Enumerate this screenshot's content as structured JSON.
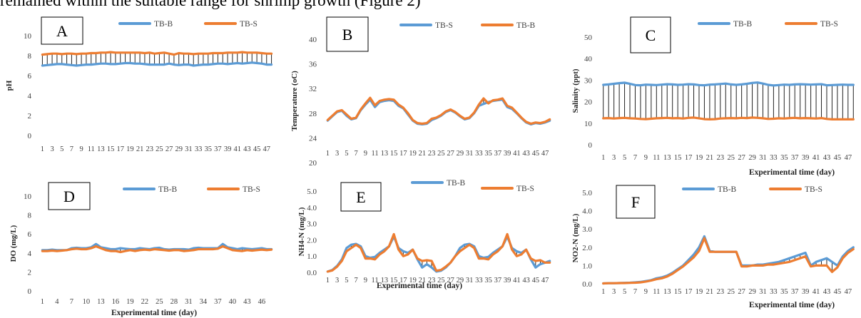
{
  "heading": "remained within the suitable range for shrimp growth (Figure 2)",
  "chart_data": [
    {
      "panel": "A",
      "type": "line",
      "xlabel": "",
      "ylabel": "pH",
      "ylim": [
        0,
        10
      ],
      "yticks": [
        0,
        2,
        4,
        6,
        8,
        10
      ],
      "x_tick_labels": [
        "1",
        "3",
        "5",
        "7",
        "9",
        "11",
        "13",
        "15",
        "17",
        "19",
        "21",
        "23",
        "25",
        "27",
        "29",
        "31",
        "33",
        "35",
        "37",
        "39",
        "41",
        "43",
        "45",
        "47"
      ],
      "legend": "top",
      "series": [
        {
          "name": "TB-B",
          "color": "#5b9bd5",
          "values": [
            7.0,
            7.05,
            7.1,
            7.15,
            7.15,
            7.1,
            7.05,
            7.0,
            7.05,
            7.1,
            7.1,
            7.15,
            7.2,
            7.2,
            7.15,
            7.15,
            7.2,
            7.25,
            7.25,
            7.2,
            7.2,
            7.15,
            7.1,
            7.1,
            7.1,
            7.1,
            7.2,
            7.1,
            7.05,
            7.1,
            7.1,
            7.0,
            7.05,
            7.1,
            7.1,
            7.15,
            7.2,
            7.2,
            7.15,
            7.2,
            7.25,
            7.2,
            7.25,
            7.3,
            7.25,
            7.2,
            7.1,
            7.1
          ]
        },
        {
          "name": "TB-S",
          "color": "#ed7d31",
          "values": [
            8.1,
            8.15,
            8.2,
            8.2,
            8.15,
            8.2,
            8.2,
            8.15,
            8.2,
            8.2,
            8.25,
            8.25,
            8.3,
            8.3,
            8.35,
            8.3,
            8.3,
            8.3,
            8.3,
            8.3,
            8.3,
            8.25,
            8.3,
            8.2,
            8.25,
            8.3,
            8.2,
            8.1,
            8.25,
            8.2,
            8.2,
            8.15,
            8.2,
            8.2,
            8.2,
            8.25,
            8.25,
            8.25,
            8.3,
            8.3,
            8.3,
            8.35,
            8.3,
            8.3,
            8.3,
            8.25,
            8.2,
            8.2
          ]
        }
      ]
    },
    {
      "panel": "B",
      "type": "line",
      "xlabel": "",
      "ylabel": "Temperature (oC)",
      "ylim": [
        20,
        40
      ],
      "yticks": [
        20,
        24,
        28,
        32,
        36,
        40
      ],
      "x_tick_labels": [
        "1",
        "3",
        "5",
        "7",
        "9",
        "11",
        "13",
        "15",
        "17",
        "19",
        "21",
        "23",
        "25",
        "27",
        "29",
        "31",
        "33",
        "35",
        "37",
        "39",
        "41",
        "43",
        "45",
        "47"
      ],
      "legend": "top",
      "series": [
        {
          "name": "TB-S",
          "color": "#5b9bd5",
          "values": [
            26.8,
            27.5,
            28.2,
            28.4,
            27.6,
            27.0,
            27.2,
            28.5,
            29.4,
            30.2,
            29.0,
            29.8,
            30.0,
            30.1,
            30.0,
            29.2,
            28.8,
            27.8,
            26.8,
            26.3,
            26.2,
            26.3,
            26.9,
            27.2,
            27.6,
            28.2,
            28.5,
            28.1,
            27.5,
            27.0,
            27.2,
            28.0,
            29.2,
            29.5,
            29.8,
            30.0,
            30.1,
            30.2,
            29.0,
            28.7,
            28.0,
            27.2,
            26.5,
            26.2,
            26.4,
            26.3,
            26.5,
            26.8
          ]
        },
        {
          "name": "TB-B",
          "color": "#ed7d31",
          "values": [
            26.9,
            27.6,
            28.3,
            28.5,
            27.8,
            27.1,
            27.3,
            28.6,
            29.6,
            30.5,
            29.3,
            30.0,
            30.2,
            30.3,
            30.2,
            29.4,
            28.9,
            28.0,
            26.9,
            26.4,
            26.3,
            26.4,
            27.1,
            27.3,
            27.7,
            28.3,
            28.6,
            28.2,
            27.6,
            27.1,
            27.3,
            28.1,
            29.4,
            30.4,
            29.6,
            30.1,
            30.2,
            30.4,
            29.2,
            28.9,
            28.1,
            27.3,
            26.6,
            26.3,
            26.5,
            26.4,
            26.6,
            27.0
          ]
        }
      ]
    },
    {
      "panel": "C",
      "type": "line",
      "xlabel": "Experimental time (day)",
      "ylabel": "Salinity (ppt)",
      "ylim": [
        0,
        50
      ],
      "yticks": [
        0,
        10,
        20,
        30,
        40,
        50
      ],
      "x_tick_labels": [
        "1",
        "3",
        "5",
        "7",
        "9",
        "11",
        "13",
        "15",
        "17",
        "19",
        "21",
        "23",
        "25",
        "27",
        "29",
        "31",
        "33",
        "35",
        "37",
        "39",
        "41",
        "43",
        "45",
        "47"
      ],
      "legend": "top",
      "series": [
        {
          "name": "TB-B",
          "color": "#5b9bd5",
          "values": [
            27.8,
            28.0,
            28.3,
            28.6,
            28.8,
            28.3,
            27.7,
            27.6,
            27.9,
            27.8,
            27.7,
            27.9,
            28.1,
            28.0,
            27.8,
            27.9,
            28.1,
            28.0,
            27.7,
            27.6,
            27.9,
            28.0,
            28.2,
            28.4,
            28.0,
            27.8,
            28.0,
            28.3,
            28.7,
            28.9,
            28.4,
            27.8,
            27.5,
            27.7,
            27.9,
            27.8,
            28.0,
            28.1,
            28.0,
            27.9,
            28.0,
            28.1,
            27.6,
            27.7,
            27.8,
            27.9,
            27.8,
            27.8
          ]
        },
        {
          "name": "TB-S",
          "color": "#ed7d31",
          "values": [
            12.3,
            12.4,
            12.2,
            12.4,
            12.5,
            12.3,
            12.2,
            12.0,
            11.9,
            12.1,
            12.3,
            12.4,
            12.5,
            12.3,
            12.4,
            12.2,
            12.5,
            12.6,
            12.3,
            11.9,
            11.8,
            11.9,
            12.2,
            12.3,
            12.4,
            12.3,
            12.5,
            12.4,
            12.6,
            12.5,
            12.3,
            12.0,
            12.1,
            12.3,
            12.2,
            12.4,
            12.5,
            12.3,
            12.4,
            12.3,
            12.2,
            12.4,
            12.0,
            11.8,
            11.8,
            11.8,
            11.8,
            11.8
          ]
        }
      ]
    },
    {
      "panel": "D",
      "type": "line",
      "xlabel": "Experimental time (day)",
      "ylabel": "DO (mg/L)",
      "ylim": [
        0,
        10
      ],
      "yticks": [
        0,
        2,
        4,
        6,
        8,
        10
      ],
      "x_tick_labels": [
        "1",
        "4",
        "7",
        "10",
        "13",
        "16",
        "19",
        "22",
        "25",
        "28",
        "31",
        "34",
        "37",
        "40",
        "43",
        "46"
      ],
      "legend": "top",
      "series": [
        {
          "name": "TB-B",
          "color": "#5b9bd5",
          "values": [
            4.3,
            4.3,
            4.35,
            4.3,
            4.3,
            4.3,
            4.5,
            4.55,
            4.5,
            4.5,
            4.6,
            4.95,
            4.6,
            4.5,
            4.4,
            4.4,
            4.5,
            4.45,
            4.4,
            4.4,
            4.5,
            4.45,
            4.4,
            4.5,
            4.55,
            4.4,
            4.35,
            4.4,
            4.4,
            4.4,
            4.35,
            4.5,
            4.55,
            4.5,
            4.5,
            4.5,
            4.5,
            4.95,
            4.6,
            4.5,
            4.4,
            4.5,
            4.45,
            4.4,
            4.45,
            4.5,
            4.4,
            4.4
          ]
        },
        {
          "name": "TB-S",
          "color": "#ed7d31",
          "values": [
            4.2,
            4.2,
            4.25,
            4.2,
            4.25,
            4.3,
            4.4,
            4.45,
            4.4,
            4.4,
            4.5,
            4.7,
            4.5,
            4.3,
            4.2,
            4.2,
            4.1,
            4.2,
            4.3,
            4.2,
            4.3,
            4.35,
            4.3,
            4.4,
            4.35,
            4.3,
            4.25,
            4.3,
            4.3,
            4.2,
            4.25,
            4.3,
            4.4,
            4.4,
            4.4,
            4.4,
            4.45,
            4.7,
            4.5,
            4.3,
            4.25,
            4.2,
            4.3,
            4.25,
            4.3,
            4.35,
            4.3,
            4.35
          ]
        }
      ]
    },
    {
      "panel": "E",
      "type": "line",
      "xlabel": "Experimental time (day)",
      "ylabel": "NH4-N (mg/L)",
      "ylim": [
        0,
        5
      ],
      "yticks": [
        0,
        1,
        2,
        3,
        4,
        5
      ],
      "ytick_labels": [
        "0.0",
        "1.0",
        "2.0",
        "3.0",
        "4.0",
        "5.0"
      ],
      "x_tick_labels": [
        "1",
        "3",
        "5",
        "7",
        "9",
        "11",
        "13",
        "15",
        "17",
        "19",
        "21",
        "23",
        "25",
        "27",
        "29",
        "31",
        "33",
        "35",
        "37",
        "39",
        "41",
        "43",
        "45",
        "47"
      ],
      "legend": "top",
      "series": [
        {
          "name": "TB-B",
          "color": "#5b9bd5",
          "values": [
            0.05,
            0.15,
            0.4,
            0.8,
            1.5,
            1.7,
            1.75,
            1.6,
            1.0,
            0.9,
            0.95,
            1.2,
            1.4,
            1.6,
            2.2,
            1.5,
            1.3,
            1.2,
            1.4,
            0.8,
            0.3,
            0.5,
            0.3,
            0.05,
            0.1,
            0.3,
            0.6,
            1.0,
            1.5,
            1.7,
            1.75,
            1.6,
            1.0,
            0.9,
            0.95,
            1.2,
            1.4,
            1.6,
            2.2,
            1.5,
            1.3,
            1.2,
            1.4,
            0.8,
            0.3,
            0.5,
            0.6,
            0.7
          ]
        },
        {
          "name": "TB-S",
          "color": "#ed7d31",
          "values": [
            0.05,
            0.12,
            0.35,
            0.7,
            1.3,
            1.5,
            1.7,
            1.5,
            0.85,
            0.85,
            0.8,
            1.1,
            1.3,
            1.6,
            2.35,
            1.4,
            1.0,
            1.1,
            1.4,
            0.85,
            0.7,
            0.75,
            0.7,
            0.1,
            0.15,
            0.35,
            0.6,
            1.0,
            1.3,
            1.5,
            1.7,
            1.5,
            0.85,
            0.85,
            0.8,
            1.1,
            1.3,
            1.6,
            2.35,
            1.4,
            1.0,
            1.1,
            1.4,
            0.85,
            0.7,
            0.75,
            0.6,
            0.6
          ]
        }
      ]
    },
    {
      "panel": "F",
      "type": "line",
      "xlabel": "Experimental time (day)",
      "ylabel": "NO2-N (mg/L)",
      "ylim": [
        0,
        5
      ],
      "yticks": [
        0,
        1,
        2,
        3,
        4,
        5
      ],
      "ytick_labels": [
        "0.0",
        "1.0",
        "2.0",
        "3.0",
        "4.0",
        "5.0"
      ],
      "x_tick_labels": [
        "1",
        "3",
        "5",
        "7",
        "9",
        "11",
        "13",
        "15",
        "17",
        "19",
        "21",
        "23",
        "25",
        "27",
        "29",
        "31",
        "33",
        "35",
        "37",
        "39",
        "41",
        "43",
        "45",
        "47"
      ],
      "legend": "top",
      "series": [
        {
          "name": "TB-B",
          "color": "#5b9bd5",
          "values": [
            0.02,
            0.03,
            0.03,
            0.04,
            0.05,
            0.06,
            0.08,
            0.1,
            0.15,
            0.2,
            0.3,
            0.35,
            0.45,
            0.6,
            0.8,
            1.0,
            1.3,
            1.6,
            2.0,
            2.6,
            1.8,
            1.75,
            1.75,
            1.75,
            1.75,
            1.75,
            1.0,
            1.0,
            1.0,
            1.05,
            1.05,
            1.1,
            1.15,
            1.2,
            1.3,
            1.4,
            1.5,
            1.6,
            1.7,
            1.0,
            1.2,
            1.3,
            1.4,
            1.2,
            1.0,
            1.5,
            1.8,
            2.0
          ]
        },
        {
          "name": "TB-S",
          "color": "#ed7d31",
          "values": [
            0.02,
            0.03,
            0.03,
            0.04,
            0.04,
            0.05,
            0.06,
            0.08,
            0.12,
            0.18,
            0.25,
            0.3,
            0.4,
            0.55,
            0.75,
            0.95,
            1.2,
            1.45,
            1.8,
            2.5,
            1.75,
            1.75,
            1.75,
            1.75,
            1.75,
            1.75,
            0.95,
            0.95,
            1.0,
            1.0,
            1.0,
            1.05,
            1.05,
            1.1,
            1.15,
            1.2,
            1.3,
            1.4,
            1.5,
            0.95,
            1.0,
            1.0,
            1.0,
            0.65,
            0.9,
            1.4,
            1.7,
            1.9
          ]
        }
      ]
    }
  ]
}
